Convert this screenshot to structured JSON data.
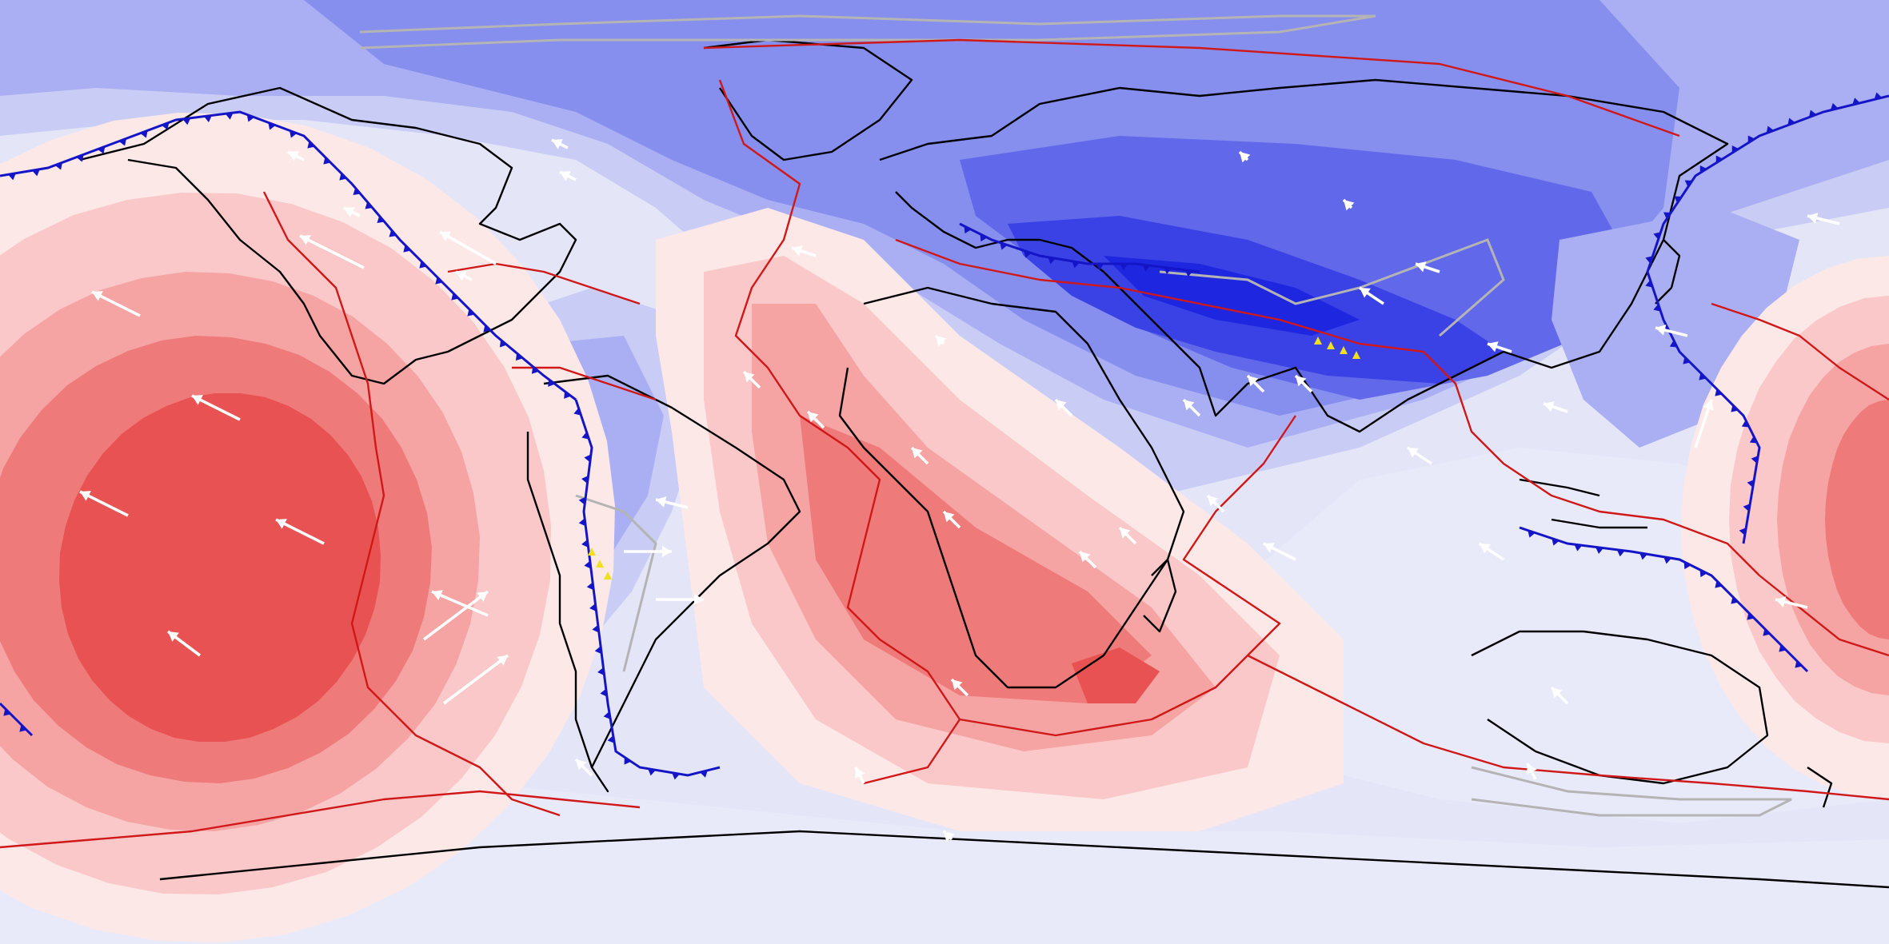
{
  "map": {
    "projection": "equirectangular",
    "colors": {
      "background": "#e4e6f8",
      "positive_levels": [
        "#fde8e8",
        "#fac8c8",
        "#f5a3a3",
        "#ef7a7a",
        "#e85252",
        "#e03a3a"
      ],
      "negative_levels": [
        "#e8eafa",
        "#c9cdf5",
        "#a9aff2",
        "#868eee",
        "#6169ea",
        "#3a42e6",
        "#1f26e0"
      ],
      "plate_boundary": "#d01818",
      "subduction_zone": "#1515c8",
      "coastline": "#000000",
      "alt_boundary": "#b4b4b4",
      "velocity_arrow": "#ffffff",
      "volcanic_marker": "#f0e020"
    },
    "layers": {
      "anomaly_field": "filled-contour",
      "coastlines": "black-line",
      "plate_boundaries": "red-line",
      "subduction_zones": "blue-toothed-line",
      "velocity_vectors": "white-arrow",
      "volcanic_markers": "yellow-glyph"
    }
  }
}
